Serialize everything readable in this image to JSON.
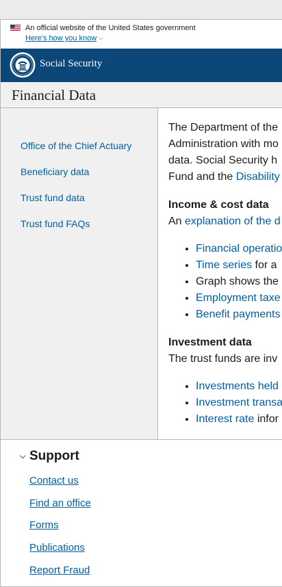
{
  "gov_banner": {
    "text": "An official website of the United States government",
    "link": "Here's how you know",
    "chevron_icon": "chevron-down-icon"
  },
  "header": {
    "agency": "Social Security",
    "seal_icon": "ssa-seal-icon",
    "background": "#0b4778"
  },
  "page": {
    "title": "Financial Data"
  },
  "sidebar": {
    "items": [
      {
        "label": "Office of the Chief Actuary"
      },
      {
        "label": "Beneficiary data"
      },
      {
        "label": "Trust fund data"
      },
      {
        "label": "Trust fund FAQs"
      }
    ]
  },
  "main": {
    "intro_line1": "The Department of the",
    "intro_line2": "Administration with mo",
    "intro_line3": "data. Social Security h",
    "intro_line4_text": "Fund and the ",
    "intro_line4_link": "Disability",
    "income": {
      "heading": "Income & cost data",
      "intro_text": "An ",
      "intro_link": "explanation of the d",
      "items": [
        {
          "link": "Financial operatio",
          "text": ""
        },
        {
          "link": "Time series",
          "text": " for a"
        },
        {
          "link": "",
          "text": "Graph shows the"
        },
        {
          "link": "Employment taxe",
          "text": ""
        },
        {
          "link": "Benefit payments",
          "text": ""
        }
      ]
    },
    "investment": {
      "heading": "Investment data",
      "intro": "The trust funds are inv",
      "items": [
        {
          "link": "Investments held",
          "text": ""
        },
        {
          "link": "Investment transa",
          "text": ""
        },
        {
          "link": "Interest rate",
          "text": " infor"
        }
      ]
    }
  },
  "support": {
    "heading": "Support",
    "chevron_icon": "chevron-down-icon",
    "links": [
      "Contact us",
      "Find an office",
      "Forms",
      "Publications",
      "Report Fraud"
    ]
  }
}
